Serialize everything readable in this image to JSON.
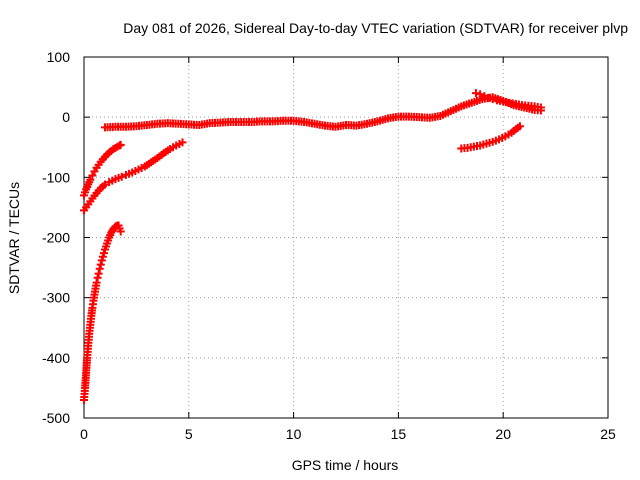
{
  "chart_data": {
    "type": "scatter",
    "title": "Day 081 of 2026, Sidereal Day-to-day VTEC variation (SDTVAR) for receiver plvp",
    "xlabel": "GPS time / hours",
    "ylabel": "SDTVAR / TECUs",
    "xlim": [
      0,
      25
    ],
    "ylim": [
      -500,
      100
    ],
    "xticks": [
      0,
      5,
      10,
      15,
      20,
      25
    ],
    "yticks": [
      -500,
      -400,
      -300,
      -200,
      -100,
      0,
      100
    ],
    "grid": true,
    "marker": "plus",
    "color": "#ff0000",
    "series": [
      {
        "x": [
          0.0,
          0.05,
          0.1,
          0.15,
          0.2,
          0.25,
          0.3,
          0.35,
          0.4,
          0.45,
          0.5,
          0.55,
          0.6,
          0.65,
          0.7,
          0.75,
          0.8,
          0.85,
          0.9,
          0.95,
          1.0,
          1.05,
          1.1,
          1.15,
          1.2,
          1.25,
          1.3,
          1.35,
          1.4,
          1.45,
          1.5,
          1.55,
          1.6,
          1.65,
          1.7,
          1.75
        ],
        "y": [
          -470,
          -450,
          -425,
          -400,
          -380,
          -360,
          -345,
          -330,
          -317,
          -305,
          -295,
          -285,
          -275,
          -267,
          -260,
          -252,
          -245,
          -238,
          -232,
          -226,
          -220,
          -215,
          -210,
          -205,
          -200,
          -196,
          -192,
          -189,
          -186,
          -184,
          -182,
          -181,
          -180,
          -180,
          -185,
          -190
        ]
      },
      {
        "x": [
          0.0,
          0.1,
          0.2,
          0.3,
          0.4,
          0.5,
          0.6,
          0.7,
          0.8,
          0.9,
          1.0,
          1.1,
          1.2,
          1.3,
          1.4,
          1.5,
          1.6,
          1.7,
          1.75
        ],
        "y": [
          -130,
          -120,
          -112,
          -104,
          -97,
          -90,
          -84,
          -79,
          -74,
          -70,
          -66,
          -62,
          -59,
          -56,
          -53,
          -51,
          -49,
          -47,
          -46
        ]
      },
      {
        "x": [
          0.0,
          0.2,
          0.4,
          0.6,
          0.8,
          1.0,
          1.2,
          1.5,
          1.8,
          2.0,
          2.3,
          2.6,
          2.9,
          3.2,
          3.5,
          3.8,
          4.1,
          4.4,
          4.7
        ],
        "y": [
          -155,
          -145,
          -135,
          -126,
          -118,
          -112,
          -108,
          -103,
          -99,
          -96,
          -92,
          -87,
          -82,
          -75,
          -68,
          -60,
          -53,
          -47,
          -42
        ]
      },
      {
        "x": [
          1.0,
          1.5,
          2.0,
          2.5,
          3.0,
          3.5,
          4.0,
          4.5,
          5.0,
          5.5,
          6.0,
          6.5,
          7.0,
          7.5,
          8.0,
          8.5,
          9.0,
          9.5,
          10.0,
          10.5,
          11.0,
          11.5,
          12.0,
          12.5,
          13.0,
          13.5,
          14.0,
          14.5,
          15.0,
          15.5,
          16.0,
          16.5,
          17.0,
          17.5,
          18.0,
          18.5,
          19.0,
          19.5,
          20.0,
          20.5,
          21.0,
          21.5,
          21.8
        ],
        "y": [
          -17,
          -16,
          -16,
          -15,
          -13,
          -11,
          -10,
          -11,
          -12,
          -13,
          -10,
          -9,
          -8,
          -8,
          -8,
          -7,
          -7,
          -6,
          -6,
          -8,
          -11,
          -14,
          -16,
          -13,
          -14,
          -11,
          -7,
          -2,
          1,
          1,
          0,
          -1,
          2,
          10,
          18,
          24,
          30,
          33,
          27,
          20,
          16,
          12,
          11
        ]
      },
      {
        "x": [
          18.7,
          18.9,
          19.1,
          19.3,
          19.5,
          19.7,
          20.0,
          20.3,
          20.6,
          20.9,
          21.2,
          21.5,
          21.8
        ],
        "y": [
          40,
          38,
          35,
          32,
          30,
          28,
          26,
          24,
          22,
          20,
          19,
          18,
          16
        ]
      },
      {
        "x": [
          18.0,
          18.3,
          18.6,
          18.9,
          19.2,
          19.5,
          19.8,
          20.1,
          20.4,
          20.6,
          20.8
        ],
        "y": [
          -52,
          -51,
          -49,
          -47,
          -44,
          -41,
          -37,
          -32,
          -26,
          -20,
          -15
        ]
      }
    ]
  }
}
